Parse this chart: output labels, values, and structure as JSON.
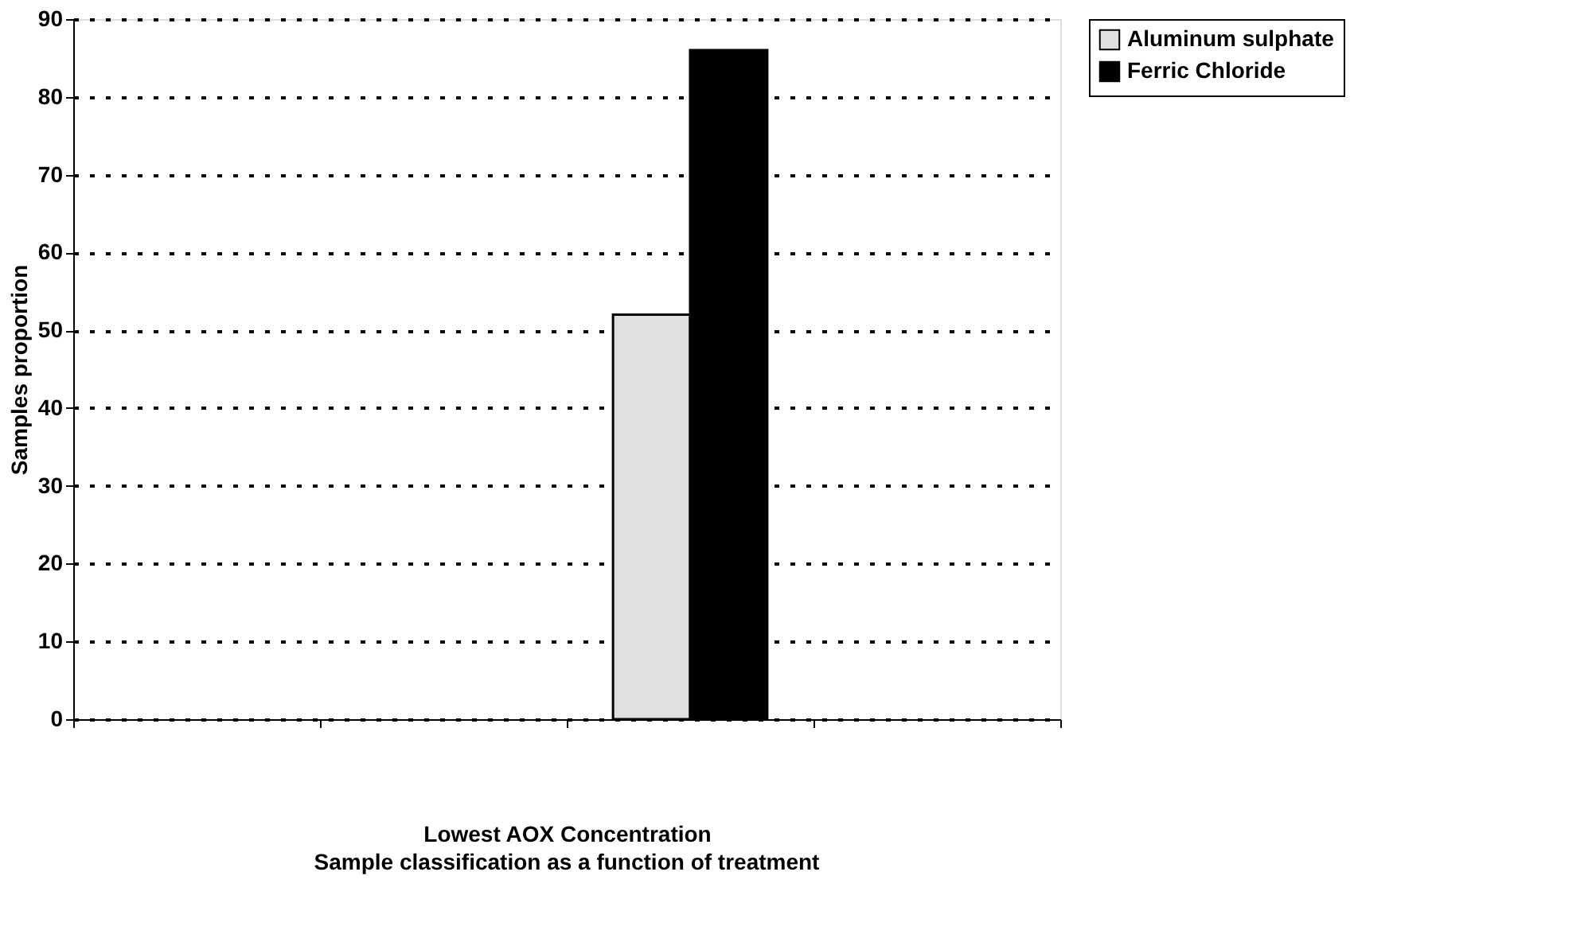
{
  "chart_data": {
    "type": "bar",
    "xlabel": "Lowest AOX Concentration",
    "ylabel": "Samples proportion",
    "annotations": [
      "Sample classification as a function of treatment"
    ],
    "categories": [
      null,
      null,
      null,
      null
    ],
    "series": [
      {
        "name": "Aluminum sulphate",
        "color": "#e0e0e0",
        "values": [
          0,
          0,
          52,
          0
        ]
      },
      {
        "name": "Ferric Chloride",
        "color": "#000000",
        "values": [
          0,
          0,
          86,
          0
        ]
      }
    ],
    "ylim": [
      0,
      90
    ],
    "yticks": [
      0,
      10,
      20,
      30,
      40,
      50,
      60,
      70,
      80,
      90
    ],
    "grid": "y",
    "legend": "right",
    "tick_labels": "y"
  }
}
